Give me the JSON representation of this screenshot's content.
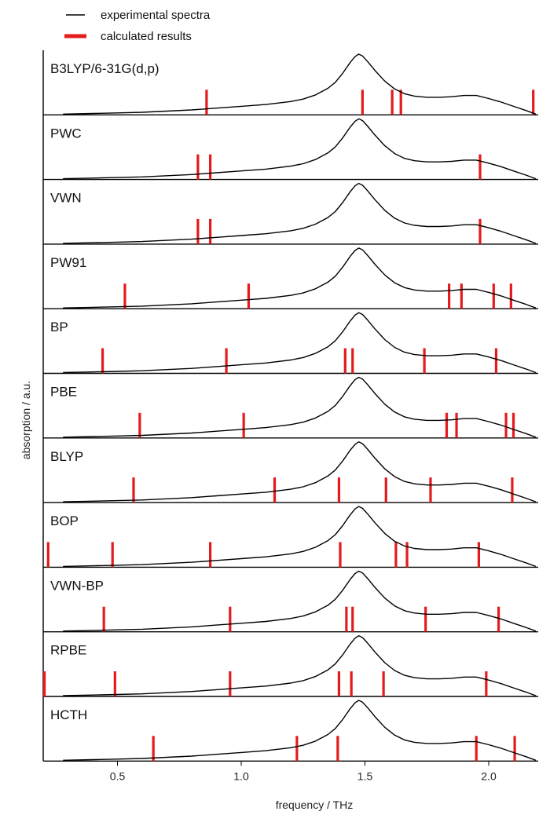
{
  "chart_data": {
    "type": "line",
    "xlabel": "frequency / THz",
    "ylabel": "absorption / a.u.",
    "xlim": [
      0.2,
      2.2
    ],
    "x_ticks": [
      {
        "value": 0.5,
        "label": "0.5"
      },
      {
        "value": 1.0,
        "label": "1.0"
      },
      {
        "value": 1.5,
        "label": "1.5"
      },
      {
        "value": 2.0,
        "label": "2.0"
      }
    ],
    "grid": false,
    "legend": {
      "placement": "top-left",
      "items": [
        {
          "label": "experimental spectra",
          "color": "#000000",
          "kind": "line"
        },
        {
          "label": "calculated results",
          "color": "#e41a1c",
          "kind": "bar"
        }
      ]
    },
    "colors": {
      "experimental": "#000000",
      "calculated": "#e41a1c"
    },
    "experimental_spectrum": {
      "name": "experimental spectra",
      "x": [
        0.28,
        0.4,
        0.5,
        0.6,
        0.7,
        0.8,
        0.9,
        1.0,
        1.1,
        1.2,
        1.25,
        1.3,
        1.35,
        1.38,
        1.41,
        1.44,
        1.46,
        1.475,
        1.49,
        1.51,
        1.54,
        1.58,
        1.62,
        1.66,
        1.7,
        1.75,
        1.8,
        1.85,
        1.9,
        1.95,
        2.0,
        2.05,
        2.1,
        2.15,
        2.19
      ],
      "y": [
        0.0,
        0.01,
        0.02,
        0.03,
        0.05,
        0.07,
        0.1,
        0.13,
        0.16,
        0.21,
        0.25,
        0.32,
        0.43,
        0.53,
        0.68,
        0.86,
        0.96,
        1.0,
        0.97,
        0.88,
        0.73,
        0.55,
        0.42,
        0.34,
        0.3,
        0.28,
        0.28,
        0.29,
        0.31,
        0.31,
        0.26,
        0.2,
        0.13,
        0.06,
        0.0
      ]
    },
    "panels": [
      {
        "label": "B3LYP/6-31G(d,p)",
        "calculated": [
          0.86,
          1.49,
          1.61,
          1.645,
          2.18
        ]
      },
      {
        "label": "PWC",
        "calculated": [
          0.825,
          0.875,
          1.965
        ]
      },
      {
        "label": "VWN",
        "calculated": [
          0.825,
          0.875,
          1.965
        ]
      },
      {
        "label": "PW91",
        "calculated": [
          0.53,
          1.03,
          1.84,
          1.89,
          2.02,
          2.09
        ]
      },
      {
        "label": "BP",
        "calculated": [
          0.44,
          0.94,
          1.42,
          1.45,
          1.74,
          2.03
        ]
      },
      {
        "label": "PBE",
        "calculated": [
          0.59,
          1.01,
          1.83,
          1.87,
          2.07,
          2.1
        ]
      },
      {
        "label": "BLYP",
        "calculated": [
          0.565,
          1.135,
          1.395,
          1.585,
          1.765,
          2.095
        ]
      },
      {
        "label": "BOP",
        "calculated": [
          0.22,
          0.48,
          0.875,
          1.4,
          1.625,
          1.67,
          1.96
        ]
      },
      {
        "label": "VWN-BP",
        "calculated": [
          0.445,
          0.955,
          1.425,
          1.45,
          1.745,
          2.04
        ]
      },
      {
        "label": "RPBE",
        "calculated": [
          0.205,
          0.49,
          0.955,
          1.395,
          1.445,
          1.575,
          1.99
        ]
      },
      {
        "label": "HCTH",
        "calculated": [
          0.645,
          1.225,
          1.39,
          1.95,
          2.105
        ]
      }
    ]
  }
}
